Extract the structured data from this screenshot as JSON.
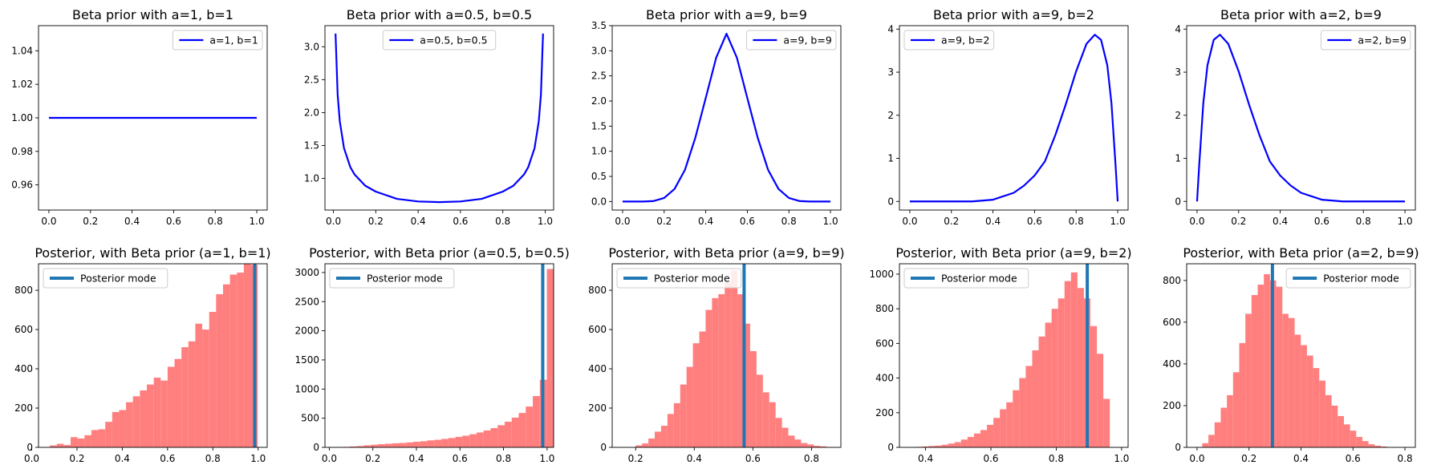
{
  "colors": {
    "prior_line": "#0000ff",
    "hist_fill": "#ff7f7f",
    "mode_line": "#1f77b4"
  },
  "chart_data": [
    {
      "type": "line",
      "title": "Beta prior with a=1, b=1",
      "legend": "a=1, b=1",
      "legend_loc": "upper-right",
      "a": 1,
      "b": 1,
      "xlim": [
        -0.05,
        1.05
      ],
      "ylim": [
        0.945,
        1.055
      ],
      "xticks": [
        0.0,
        0.2,
        0.4,
        0.6,
        0.8,
        1.0
      ],
      "xtick_labels": [
        "0.0",
        "0.2",
        "0.4",
        "0.6",
        "0.8",
        "1.0"
      ],
      "yticks": [
        0.96,
        0.98,
        1.0,
        1.02,
        1.04
      ],
      "ytick_labels": [
        "0.96",
        "0.98",
        "1.00",
        "1.02",
        "1.04"
      ],
      "x": [
        0.0,
        0.25,
        0.5,
        0.75,
        1.0
      ],
      "y": [
        1.0,
        1.0,
        1.0,
        1.0,
        1.0
      ]
    },
    {
      "type": "line",
      "title": "Beta prior with a=0.5, b=0.5",
      "legend": "a=0.5, b=0.5",
      "legend_loc": "upper-center",
      "a": 0.5,
      "b": 0.5,
      "xlim": [
        -0.04,
        1.04
      ],
      "ylim": [
        0.52,
        3.32
      ],
      "xticks": [
        0.0,
        0.2,
        0.4,
        0.6,
        0.8,
        1.0
      ],
      "xtick_labels": [
        "0.0",
        "0.2",
        "0.4",
        "0.6",
        "0.8",
        "1.0"
      ],
      "yticks": [
        1.0,
        1.5,
        2.0,
        2.5,
        3.0
      ],
      "ytick_labels": [
        "1.0",
        "1.5",
        "2.0",
        "2.5",
        "3.0"
      ],
      "x": [
        0.01,
        0.02,
        0.03,
        0.05,
        0.08,
        0.1,
        0.15,
        0.2,
        0.3,
        0.4,
        0.5,
        0.6,
        0.7,
        0.8,
        0.85,
        0.9,
        0.92,
        0.95,
        0.97,
        0.98,
        0.99
      ],
      "y": [
        3.2,
        2.27,
        1.87,
        1.46,
        1.17,
        1.06,
        0.89,
        0.8,
        0.69,
        0.65,
        0.64,
        0.65,
        0.69,
        0.8,
        0.89,
        1.06,
        1.17,
        1.46,
        1.87,
        2.27,
        3.2
      ]
    },
    {
      "type": "line",
      "title": "Beta prior with a=9, b=9",
      "legend": "a=9, b=9",
      "legend_loc": "upper-right",
      "a": 9,
      "b": 9,
      "xlim": [
        -0.05,
        1.05
      ],
      "ylim": [
        -0.17,
        3.5
      ],
      "xticks": [
        0.0,
        0.2,
        0.4,
        0.6,
        0.8,
        1.0
      ],
      "xtick_labels": [
        "0.0",
        "0.2",
        "0.4",
        "0.6",
        "0.8",
        "1.0"
      ],
      "yticks": [
        0.0,
        0.5,
        1.0,
        1.5,
        2.0,
        2.5,
        3.0,
        3.5
      ],
      "ytick_labels": [
        "0.0",
        "0.5",
        "1.0",
        "1.5",
        "2.0",
        "2.5",
        "3.0",
        "3.5"
      ],
      "x": [
        0.0,
        0.1,
        0.15,
        0.2,
        0.25,
        0.3,
        0.35,
        0.4,
        0.45,
        0.5,
        0.55,
        0.6,
        0.65,
        0.7,
        0.75,
        0.8,
        0.85,
        0.9,
        1.0
      ],
      "y": [
        0.0,
        0.0,
        0.01,
        0.07,
        0.25,
        0.63,
        1.27,
        2.06,
        2.86,
        3.34,
        2.86,
        2.06,
        1.27,
        0.63,
        0.25,
        0.07,
        0.01,
        0.0,
        0.0
      ]
    },
    {
      "type": "line",
      "title": "Beta prior with a=9, b=2",
      "legend": "a=9, b=2",
      "legend_loc": "upper-left",
      "a": 9,
      "b": 2,
      "xlim": [
        -0.05,
        1.05
      ],
      "ylim": [
        -0.2,
        4.08
      ],
      "xticks": [
        0.0,
        0.2,
        0.4,
        0.6,
        0.8,
        1.0
      ],
      "xtick_labels": [
        "0.0",
        "0.2",
        "0.4",
        "0.6",
        "0.8",
        "1.0"
      ],
      "yticks": [
        0,
        1,
        2,
        3,
        4
      ],
      "ytick_labels": [
        "0",
        "1",
        "2",
        "3",
        "4"
      ],
      "x": [
        0.0,
        0.3,
        0.4,
        0.5,
        0.55,
        0.6,
        0.65,
        0.7,
        0.75,
        0.8,
        0.85,
        0.89,
        0.92,
        0.95,
        0.97,
        0.99,
        1.0
      ],
      "y": [
        0.0,
        0.0,
        0.04,
        0.2,
        0.37,
        0.6,
        0.93,
        1.54,
        2.25,
        3.02,
        3.66,
        3.87,
        3.75,
        3.16,
        2.28,
        0.82,
        0.0
      ]
    },
    {
      "type": "line",
      "title": "Beta prior with a=2, b=9",
      "legend": "a=2, b=9",
      "legend_loc": "upper-right",
      "a": 2,
      "b": 9,
      "xlim": [
        -0.05,
        1.05
      ],
      "ylim": [
        -0.2,
        4.08
      ],
      "xticks": [
        0.0,
        0.2,
        0.4,
        0.6,
        0.8,
        1.0
      ],
      "xtick_labels": [
        "0.0",
        "0.2",
        "0.4",
        "0.6",
        "0.8",
        "1.0"
      ],
      "yticks": [
        0,
        1,
        2,
        3,
        4
      ],
      "ytick_labels": [
        "0",
        "1",
        "2",
        "3",
        "4"
      ],
      "x": [
        0.0,
        0.01,
        0.03,
        0.05,
        0.08,
        0.11,
        0.15,
        0.2,
        0.25,
        0.3,
        0.35,
        0.4,
        0.45,
        0.5,
        0.6,
        0.7,
        1.0
      ],
      "y": [
        0.0,
        0.82,
        2.28,
        3.16,
        3.75,
        3.87,
        3.66,
        3.02,
        2.25,
        1.54,
        0.93,
        0.6,
        0.37,
        0.2,
        0.04,
        0.0,
        0.0
      ]
    },
    {
      "type": "bar",
      "title": "Posterior, with Beta prior (a=1, b=1)",
      "legend": "Posterior mode",
      "legend_loc": "upper-left",
      "mode": 0.985,
      "xlim": [
        0.03,
        1.04
      ],
      "ylim": [
        0,
        935
      ],
      "xticks": [
        0.0,
        0.2,
        0.4,
        0.6,
        0.8,
        1.0
      ],
      "xtick_labels": [
        "0.0",
        "0.2",
        "0.4",
        "0.6",
        "0.8",
        "1.0"
      ],
      "yticks": [
        0,
        200,
        400,
        600,
        800
      ],
      "ytick_labels": [
        "0",
        "200",
        "400",
        "600",
        "800"
      ],
      "bin_start": 0.08,
      "bin_width": 0.0306,
      "values": [
        10,
        18,
        12,
        52,
        45,
        62,
        88,
        92,
        130,
        180,
        190,
        230,
        260,
        290,
        320,
        355,
        340,
        410,
        450,
        510,
        540,
        630,
        600,
        690,
        780,
        830,
        880,
        890,
        940,
        930
      ]
    },
    {
      "type": "bar",
      "title": "Posterior, with Beta prior (a=0.5, b=0.5)",
      "legend": "Posterior mode",
      "legend_loc": "upper-left",
      "mode": 0.98,
      "xlim": [
        -0.02,
        1.03
      ],
      "ylim": [
        0,
        3150
      ],
      "xticks": [
        0.0,
        0.2,
        0.4,
        0.6,
        0.8,
        1.0
      ],
      "xtick_labels": [
        "0.0",
        "0.2",
        "0.4",
        "0.6",
        "0.8",
        "1.0"
      ],
      "yticks": [
        0,
        500,
        1000,
        1500,
        2000,
        2500,
        3000
      ],
      "ytick_labels": [
        "0",
        "500",
        "1000",
        "1500",
        "2000",
        "2500",
        "3000"
      ],
      "bin_start": 0.03,
      "bin_width": 0.0323,
      "values": [
        5,
        8,
        15,
        22,
        35,
        45,
        55,
        62,
        70,
        75,
        85,
        95,
        105,
        120,
        130,
        145,
        160,
        180,
        200,
        225,
        255,
        290,
        330,
        380,
        440,
        510,
        590,
        700,
        880,
        1160,
        3060
      ]
    },
    {
      "type": "bar",
      "title": "Posterior, with Beta prior (a=9, b=9)",
      "legend": "Posterior mode",
      "legend_loc": "upper-left",
      "mode": 0.57,
      "xlim": [
        0.12,
        0.9
      ],
      "ylim": [
        0,
        935
      ],
      "xticks": [
        0.2,
        0.4,
        0.6,
        0.8
      ],
      "xtick_labels": [
        "0.2",
        "0.4",
        "0.6",
        "0.8"
      ],
      "yticks": [
        0,
        200,
        400,
        600,
        800
      ],
      "ytick_labels": [
        "0",
        "200",
        "400",
        "600",
        "800"
      ],
      "bin_start": 0.2,
      "bin_width": 0.0217,
      "values": [
        10,
        20,
        45,
        80,
        110,
        170,
        225,
        320,
        410,
        530,
        590,
        700,
        760,
        780,
        840,
        900,
        780,
        630,
        490,
        370,
        280,
        230,
        150,
        100,
        60,
        40,
        22,
        15,
        8,
        5
      ]
    },
    {
      "type": "bar",
      "title": "Posterior, with Beta prior (a=9, b=2)",
      "legend": "Posterior mode",
      "legend_loc": "upper-left",
      "mode": 0.895,
      "xlim": [
        0.32,
        1.02
      ],
      "ylim": [
        0,
        1060
      ],
      "xticks": [
        0.4,
        0.6,
        0.8,
        1.0
      ],
      "xtick_labels": [
        "0.4",
        "0.6",
        "0.8",
        "1.0"
      ],
      "yticks": [
        0,
        200,
        400,
        600,
        800,
        1000
      ],
      "ytick_labels": [
        "0",
        "200",
        "400",
        "600",
        "800",
        "1000"
      ],
      "bin_start": 0.37,
      "bin_width": 0.0198,
      "values": [
        3,
        5,
        8,
        10,
        15,
        22,
        30,
        45,
        60,
        80,
        100,
        130,
        170,
        220,
        260,
        330,
        400,
        470,
        560,
        640,
        720,
        800,
        860,
        960,
        1010,
        920,
        860,
        700,
        540,
        280
      ]
    },
    {
      "type": "bar",
      "title": "Posterior, with Beta prior (a=2, b=9)",
      "legend": "Posterior mode",
      "legend_loc": "upper-right",
      "mode": 0.29,
      "xlim": [
        -0.04,
        0.84
      ],
      "ylim": [
        0,
        880
      ],
      "xticks": [
        0.0,
        0.2,
        0.4,
        0.6,
        0.8
      ],
      "xtick_labels": [
        "0.0",
        "0.2",
        "0.4",
        "0.6",
        "0.8"
      ],
      "yticks": [
        0,
        200,
        400,
        600,
        800
      ],
      "ytick_labels": [
        "0",
        "200",
        "400",
        "600",
        "800"
      ],
      "bin_start": 0.02,
      "bin_width": 0.0237,
      "values": [
        20,
        60,
        120,
        190,
        250,
        360,
        500,
        640,
        730,
        780,
        830,
        800,
        770,
        640,
        620,
        540,
        490,
        440,
        380,
        320,
        250,
        200,
        150,
        110,
        80,
        50,
        30,
        15,
        8,
        4
      ]
    }
  ]
}
